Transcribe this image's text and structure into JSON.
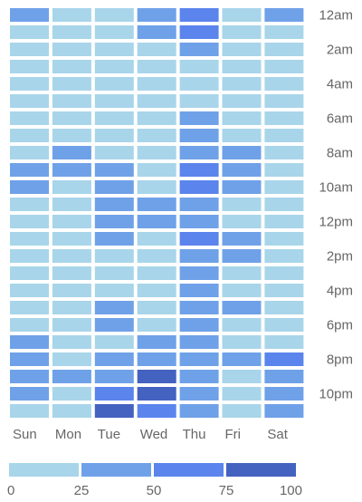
{
  "colors": {
    "bin_0_25": "#a8d5ea",
    "bin_25_50": "#6fa1e8",
    "bin_50_75": "#5b84ec",
    "bin_75_100": "#4462c0"
  },
  "chart_data": {
    "type": "heatmap",
    "title": "",
    "xlabel": "",
    "ylabel": "",
    "x_categories": [
      "Sun",
      "Mon",
      "Tue",
      "Wed",
      "Thu",
      "Fri",
      "Sat"
    ],
    "y_tick_labels": [
      "12am",
      "2am",
      "4am",
      "6am",
      "8am",
      "10am",
      "12pm",
      "2pm",
      "4pm",
      "6pm",
      "8pm",
      "10pm"
    ],
    "y_categories_count": 24,
    "value_range": [
      0,
      100
    ],
    "legend": {
      "position": "bottom",
      "bins": [
        [
          0,
          25
        ],
        [
          25,
          50
        ],
        [
          50,
          75
        ],
        [
          75,
          100
        ]
      ],
      "tick_labels": [
        "0",
        "25",
        "50",
        "75",
        "100"
      ]
    },
    "values": [
      [
        40,
        10,
        10,
        40,
        60,
        10,
        40
      ],
      [
        10,
        10,
        10,
        40,
        60,
        10,
        10
      ],
      [
        10,
        10,
        10,
        10,
        40,
        10,
        10
      ],
      [
        10,
        10,
        10,
        10,
        10,
        10,
        10
      ],
      [
        10,
        10,
        10,
        10,
        10,
        10,
        10
      ],
      [
        10,
        10,
        10,
        10,
        10,
        10,
        10
      ],
      [
        10,
        10,
        10,
        10,
        40,
        10,
        10
      ],
      [
        10,
        10,
        10,
        10,
        40,
        10,
        10
      ],
      [
        10,
        40,
        10,
        10,
        40,
        40,
        10
      ],
      [
        40,
        40,
        40,
        10,
        60,
        40,
        10
      ],
      [
        40,
        10,
        40,
        10,
        60,
        40,
        10
      ],
      [
        10,
        10,
        40,
        40,
        40,
        10,
        10
      ],
      [
        10,
        10,
        40,
        40,
        40,
        10,
        10
      ],
      [
        10,
        10,
        40,
        10,
        60,
        40,
        10
      ],
      [
        10,
        10,
        10,
        10,
        40,
        40,
        10
      ],
      [
        10,
        10,
        10,
        10,
        40,
        10,
        10
      ],
      [
        10,
        10,
        10,
        10,
        40,
        10,
        10
      ],
      [
        10,
        10,
        40,
        10,
        40,
        40,
        10
      ],
      [
        10,
        10,
        40,
        10,
        40,
        10,
        10
      ],
      [
        40,
        10,
        10,
        40,
        40,
        10,
        10
      ],
      [
        40,
        10,
        40,
        40,
        40,
        40,
        60
      ],
      [
        40,
        40,
        40,
        85,
        40,
        10,
        40
      ],
      [
        40,
        10,
        60,
        85,
        40,
        10,
        40
      ],
      [
        10,
        10,
        85,
        60,
        40,
        10,
        40
      ]
    ]
  }
}
